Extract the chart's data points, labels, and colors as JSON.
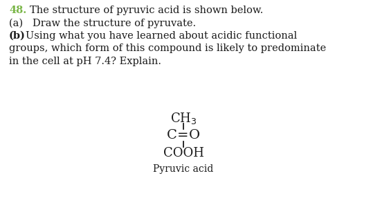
{
  "background_color": "#ffffff",
  "number_text": "48.",
  "number_color": "#7ab648",
  "title_text": "The structure of pyruvic acid is shown below.",
  "line_a": "(a)   Draw the structure of pyruvate.",
  "line_b_bold": "(b)",
  "line_b_rest": "   Using what you have learned about acidic functional",
  "line_c": "groups, which form of this compound is likely to predominate",
  "line_d": "in the cell at pH 7.4? Explain.",
  "label_text": "Pyruvic acid",
  "font_size_main": 10.5,
  "font_size_struct": 13,
  "font_size_label": 10
}
